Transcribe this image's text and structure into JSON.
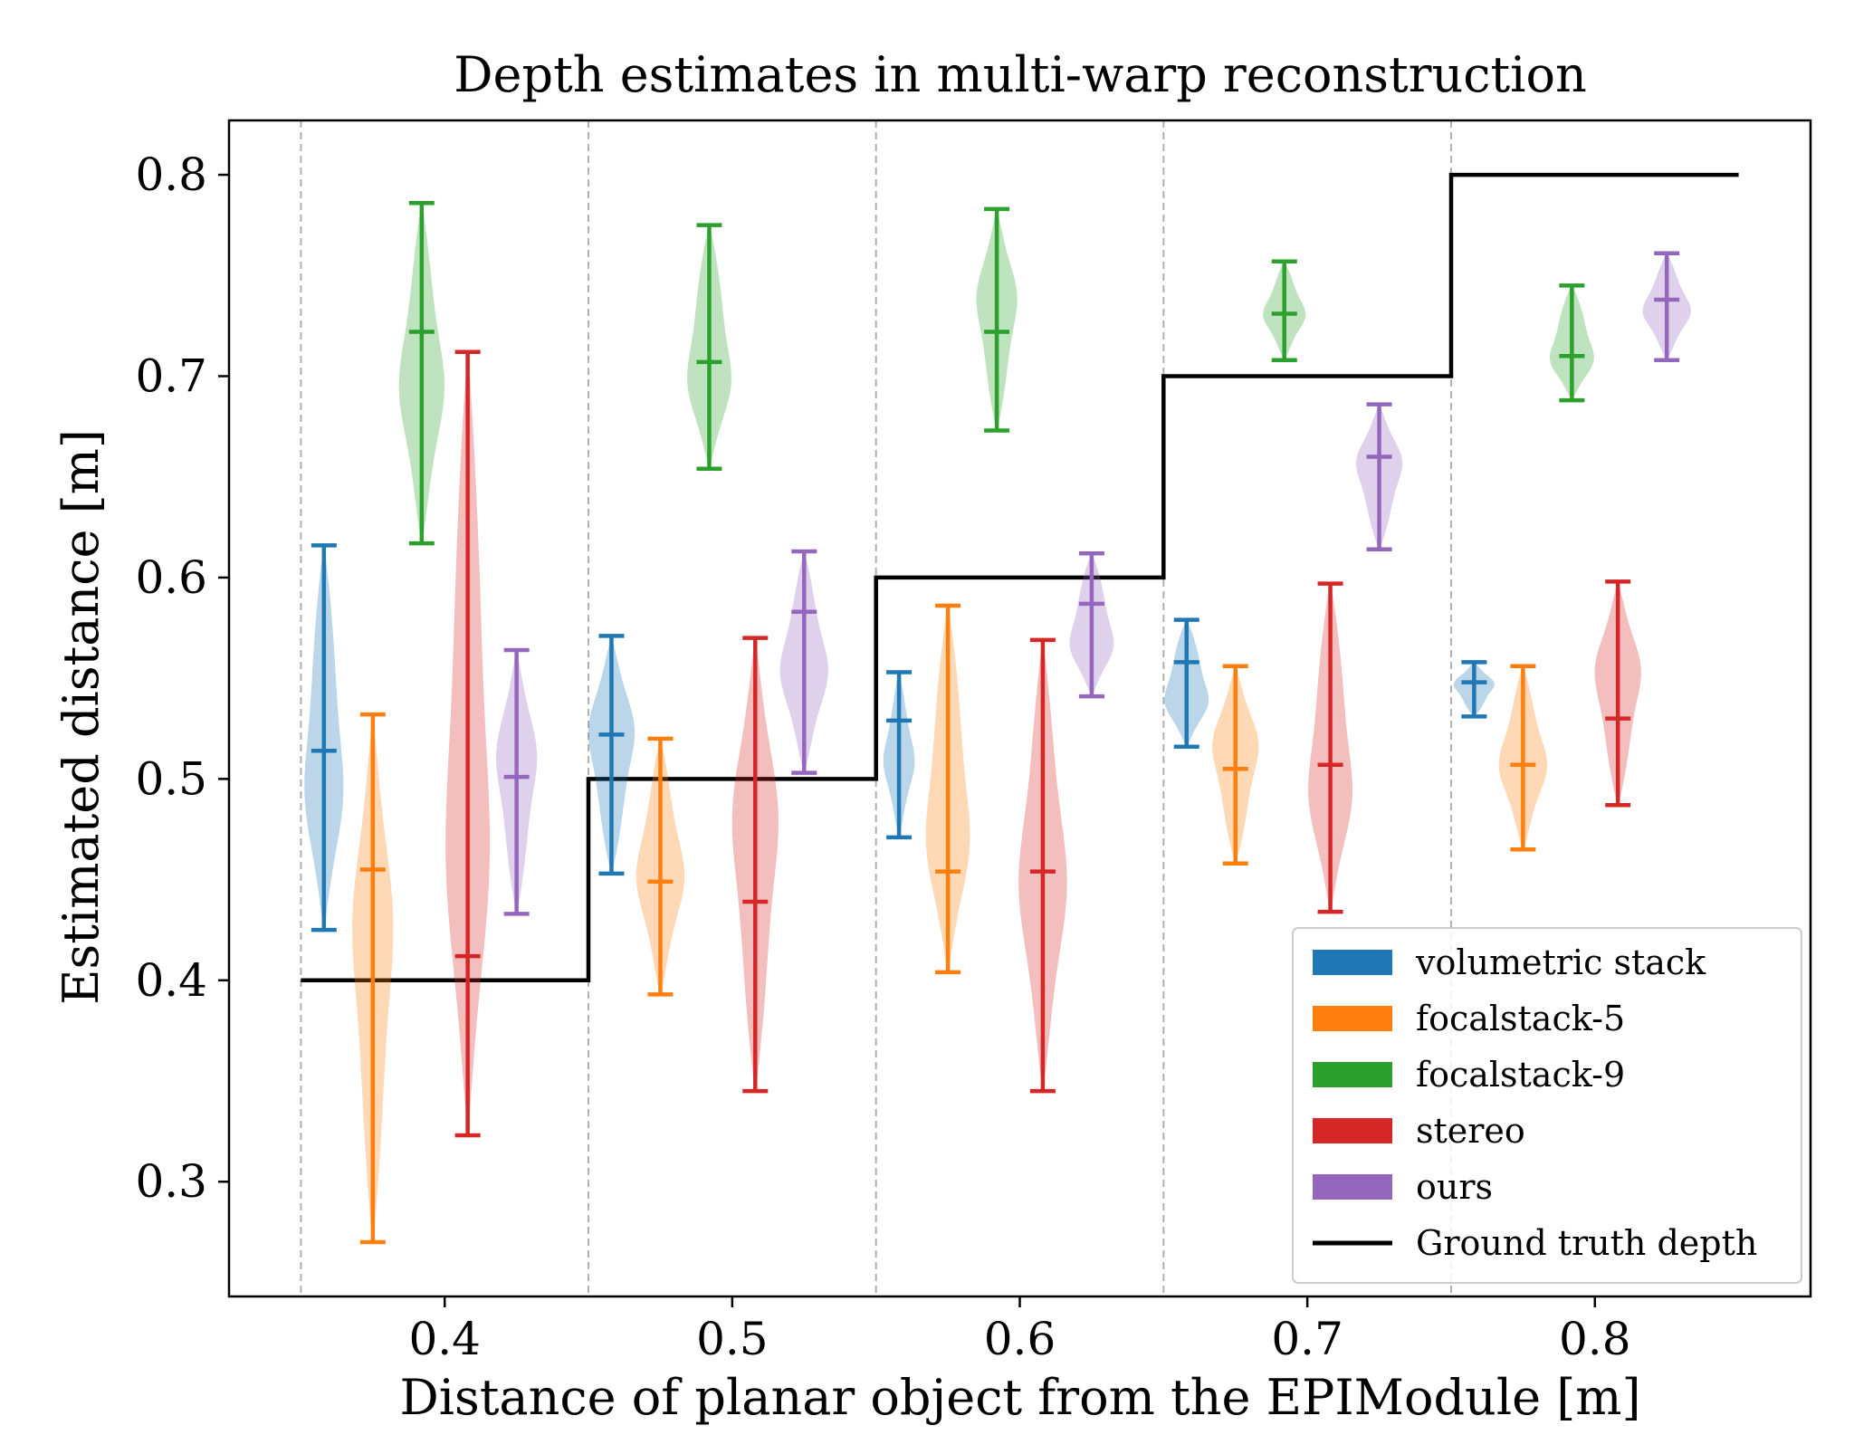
{
  "chart_data": {
    "type": "violin",
    "title": "Depth estimates in multi-warp reconstruction",
    "xlabel": "Distance of planar object from the EPIModule [m]",
    "ylabel": "Estimated distance [m]",
    "xlim": [
      0.325,
      0.875
    ],
    "ylim": [
      0.243,
      0.827
    ],
    "xticks": [
      "0.4",
      "0.5",
      "0.6",
      "0.7",
      "0.8"
    ],
    "yticks": [
      "0.3",
      "0.4",
      "0.5",
      "0.6",
      "0.7",
      "0.8"
    ],
    "xtick_values": [
      0.4,
      0.5,
      0.6,
      0.7,
      0.8
    ],
    "ytick_values": [
      0.3,
      0.4,
      0.5,
      0.6,
      0.7,
      0.8
    ],
    "separators": [
      0.35,
      0.45,
      0.55,
      0.65,
      0.75
    ],
    "grid": "vertical dashed separators",
    "legend_position": "lower-right",
    "colors": {
      "volumetric stack": "#1f77b4",
      "focalstack-5": "#ff7f0e",
      "focalstack-9": "#2ca02c",
      "stereo": "#d62728",
      "ours": "#9467bd",
      "ground_truth": "#000000"
    },
    "ground_truth": {
      "name": "Ground truth depth",
      "x": [
        0.35,
        0.45,
        0.45,
        0.55,
        0.55,
        0.65,
        0.65,
        0.75,
        0.75,
        0.85
      ],
      "y": [
        0.4,
        0.4,
        0.5,
        0.5,
        0.6,
        0.6,
        0.7,
        0.7,
        0.8,
        0.8
      ]
    },
    "series": [
      {
        "name": "volumetric stack",
        "x": [
          0.358,
          0.458,
          0.558,
          0.658,
          0.758
        ],
        "min": [
          0.425,
          0.453,
          0.471,
          0.516,
          0.531
        ],
        "median": [
          0.514,
          0.522,
          0.529,
          0.558,
          0.548
        ],
        "max": [
          0.616,
          0.571,
          0.553,
          0.579,
          0.558
        ],
        "max_width": [
          0.0075,
          0.0085,
          0.0055,
          0.0085,
          0.0075
        ]
      },
      {
        "name": "focalstack-5",
        "x": [
          0.375,
          0.475,
          0.575,
          0.675,
          0.775
        ],
        "min": [
          0.27,
          0.393,
          0.404,
          0.458,
          0.465
        ],
        "median": [
          0.455,
          0.449,
          0.454,
          0.505,
          0.507
        ],
        "max": [
          0.532,
          0.52,
          0.586,
          0.556,
          0.556
        ],
        "max_width": [
          0.0075,
          0.0085,
          0.0085,
          0.0085,
          0.0085
        ]
      },
      {
        "name": "focalstack-9",
        "x": [
          0.392,
          0.492,
          0.592,
          0.692,
          0.792
        ],
        "min": [
          0.617,
          0.654,
          0.673,
          0.708,
          0.688
        ],
        "median": [
          0.722,
          0.707,
          0.722,
          0.731,
          0.71
        ],
        "max": [
          0.786,
          0.775,
          0.783,
          0.757,
          0.745
        ],
        "max_width": [
          0.008,
          0.0085,
          0.0075,
          0.0075,
          0.0085
        ]
      },
      {
        "name": "stereo",
        "x": [
          0.408,
          0.508,
          0.608,
          0.708,
          0.808
        ],
        "min": [
          0.323,
          0.345,
          0.345,
          0.434,
          0.487
        ],
        "median": [
          0.412,
          0.439,
          0.454,
          0.507,
          0.53
        ],
        "max": [
          0.712,
          0.57,
          0.569,
          0.597,
          0.598
        ],
        "max_width": [
          0.0085,
          0.0085,
          0.0085,
          0.0085,
          0.0085
        ]
      },
      {
        "name": "ours",
        "x": [
          0.425,
          0.525,
          0.625,
          0.725,
          0.825
        ],
        "min": [
          0.433,
          0.503,
          0.541,
          0.614,
          0.708
        ],
        "median": [
          0.501,
          0.583,
          0.587,
          0.66,
          0.738
        ],
        "max": [
          0.564,
          0.613,
          0.612,
          0.686,
          0.761
        ],
        "max_width": [
          0.0075,
          0.0085,
          0.0085,
          0.0085,
          0.0085
        ]
      }
    ],
    "legend": [
      "volumetric stack",
      "focalstack-5",
      "focalstack-9",
      "stereo",
      "ours",
      "Ground truth depth"
    ]
  }
}
